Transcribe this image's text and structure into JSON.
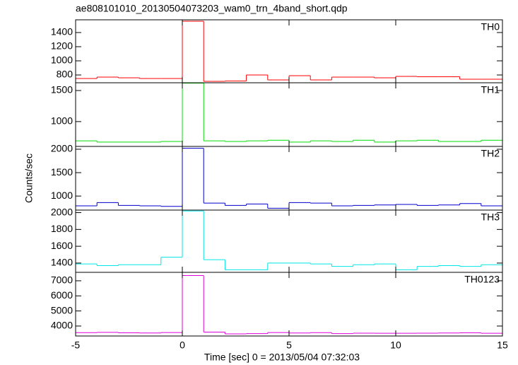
{
  "title": "ae808101010_20130504073203_wam0_trn_4band_short.qdp",
  "x_label": "Time [sec] 0 = 2013/05/04 07:32:03",
  "y_label": "Counts/sec",
  "chart_data": [
    {
      "type": "histogram",
      "label": "TH0",
      "color": "#ff0000",
      "bins": [
        -5,
        -4,
        -3,
        -2,
        -1,
        0,
        1,
        2,
        3,
        4,
        5,
        6,
        7,
        8,
        9,
        10,
        11,
        12,
        13,
        14,
        15
      ],
      "values": [
        750,
        770,
        760,
        750,
        750,
        1560,
        710,
        715,
        800,
        730,
        790,
        730,
        770,
        770,
        760,
        780,
        775,
        775,
        740,
        740
      ],
      "xlim": [
        -5,
        15
      ],
      "xticks": [
        -5,
        0,
        5,
        10,
        15
      ],
      "ylim": [
        690,
        1580
      ],
      "yticks": [
        800,
        1000,
        1200,
        1400
      ]
    },
    {
      "type": "histogram",
      "label": "TH1",
      "color": "#00dd00",
      "bins": [
        -5,
        -4,
        -3,
        -2,
        -1,
        0,
        1,
        2,
        3,
        4,
        5,
        6,
        7,
        8,
        9,
        10,
        11,
        12,
        13,
        14,
        15
      ],
      "values": [
        690,
        670,
        670,
        670,
        680,
        1620,
        690,
        680,
        690,
        700,
        670,
        690,
        680,
        700,
        670,
        690,
        700,
        680,
        680,
        700
      ],
      "xlim": [
        -5,
        15
      ],
      "xticks": [
        -5,
        0,
        5,
        10,
        15
      ],
      "ylim": [
        600,
        1625
      ],
      "yticks": [
        1000,
        1500
      ]
    },
    {
      "type": "histogram",
      "label": "TH2",
      "color": "#0000cc",
      "bins": [
        -5,
        -4,
        -3,
        -2,
        -1,
        0,
        1,
        2,
        3,
        4,
        5,
        6,
        7,
        8,
        9,
        10,
        11,
        12,
        13,
        14,
        15
      ],
      "values": [
        790,
        860,
        800,
        790,
        780,
        2020,
        850,
        800,
        830,
        740,
        860,
        850,
        790,
        800,
        810,
        820,
        800,
        810,
        840,
        790
      ],
      "xlim": [
        -5,
        15
      ],
      "xticks": [
        -5,
        0,
        5,
        10,
        15
      ],
      "ylim": [
        700,
        2060
      ],
      "yticks": [
        1000,
        1500,
        2000
      ]
    },
    {
      "type": "histogram",
      "label": "TH3",
      "color": "#00e5e5",
      "bins": [
        -5,
        -4,
        -3,
        -2,
        -1,
        0,
        1,
        2,
        3,
        4,
        5,
        6,
        7,
        8,
        9,
        10,
        11,
        12,
        13,
        14,
        15
      ],
      "values": [
        1390,
        1370,
        1380,
        1380,
        1470,
        2020,
        1440,
        1320,
        1320,
        1400,
        1400,
        1390,
        1360,
        1380,
        1390,
        1320,
        1360,
        1370,
        1360,
        1380
      ],
      "xlim": [
        -5,
        15
      ],
      "xticks": [
        -5,
        0,
        5,
        10,
        15
      ],
      "ylim": [
        1290,
        2030
      ],
      "yticks": [
        1400,
        1600,
        1800,
        2000
      ]
    },
    {
      "type": "histogram",
      "label": "TH0123",
      "color": "#dd00dd",
      "bins": [
        -5,
        -4,
        -3,
        -2,
        -1,
        0,
        1,
        2,
        3,
        4,
        5,
        6,
        7,
        8,
        9,
        10,
        11,
        12,
        13,
        14,
        15
      ],
      "values": [
        3560,
        3580,
        3550,
        3540,
        3570,
        7350,
        3600,
        3480,
        3500,
        3570,
        3540,
        3560,
        3500,
        3530,
        3520,
        3520,
        3530,
        3540,
        3550,
        3520
      ],
      "xlim": [
        -5,
        15
      ],
      "xticks": [
        -5,
        0,
        5,
        10,
        15
      ],
      "ylim": [
        3340,
        7560
      ],
      "yticks": [
        4000,
        5000,
        6000,
        7000
      ]
    }
  ]
}
